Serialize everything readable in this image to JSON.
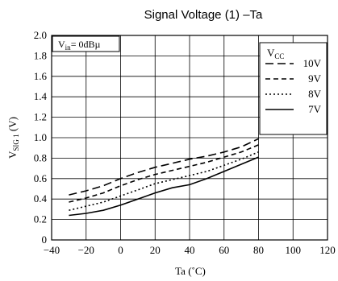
{
  "chart_data": {
    "type": "line",
    "title": "Signal Voltage (1) –Ta",
    "xlabel": "Ta (˚C)",
    "ylabel": {
      "main": "V",
      "sub": "SIG 1",
      "unit": " (V)"
    },
    "annotation": {
      "main": "V",
      "sub": "in",
      "rest": "= 0dBµ"
    },
    "legend_title": {
      "main": "V",
      "sub": "CC"
    },
    "legend_placement": "top-right",
    "grid": true,
    "xlim": [
      -40,
      120
    ],
    "ylim": [
      0,
      2.0
    ],
    "x_ticks": [
      "−40",
      "−20",
      "0",
      "20",
      "40",
      "60",
      "80",
      "100",
      "120"
    ],
    "y_ticks": [
      "0",
      "0.2",
      "0.4",
      "0.6",
      "0.8",
      "1.0",
      "1.2",
      "1.4",
      "1.6",
      "1.8",
      "2.0"
    ],
    "x": [
      -30,
      -20,
      -10,
      0,
      10,
      20,
      30,
      40,
      50,
      60,
      70,
      80
    ],
    "series": [
      {
        "name": "10V",
        "dash": "10,5",
        "values": [
          0.44,
          0.48,
          0.53,
          0.6,
          0.66,
          0.71,
          0.75,
          0.79,
          0.82,
          0.86,
          0.91,
          0.99
        ]
      },
      {
        "name": "9V",
        "dash": "6,4",
        "values": [
          0.37,
          0.41,
          0.46,
          0.53,
          0.59,
          0.64,
          0.68,
          0.72,
          0.76,
          0.81,
          0.86,
          0.93
        ]
      },
      {
        "name": "8V",
        "dash": "2,3",
        "values": [
          0.29,
          0.33,
          0.37,
          0.43,
          0.49,
          0.55,
          0.59,
          0.63,
          0.67,
          0.73,
          0.79,
          0.86
        ]
      },
      {
        "name": "7V",
        "dash": "",
        "values": [
          0.24,
          0.26,
          0.29,
          0.34,
          0.4,
          0.46,
          0.51,
          0.54,
          0.6,
          0.67,
          0.74,
          0.81
        ]
      }
    ]
  }
}
